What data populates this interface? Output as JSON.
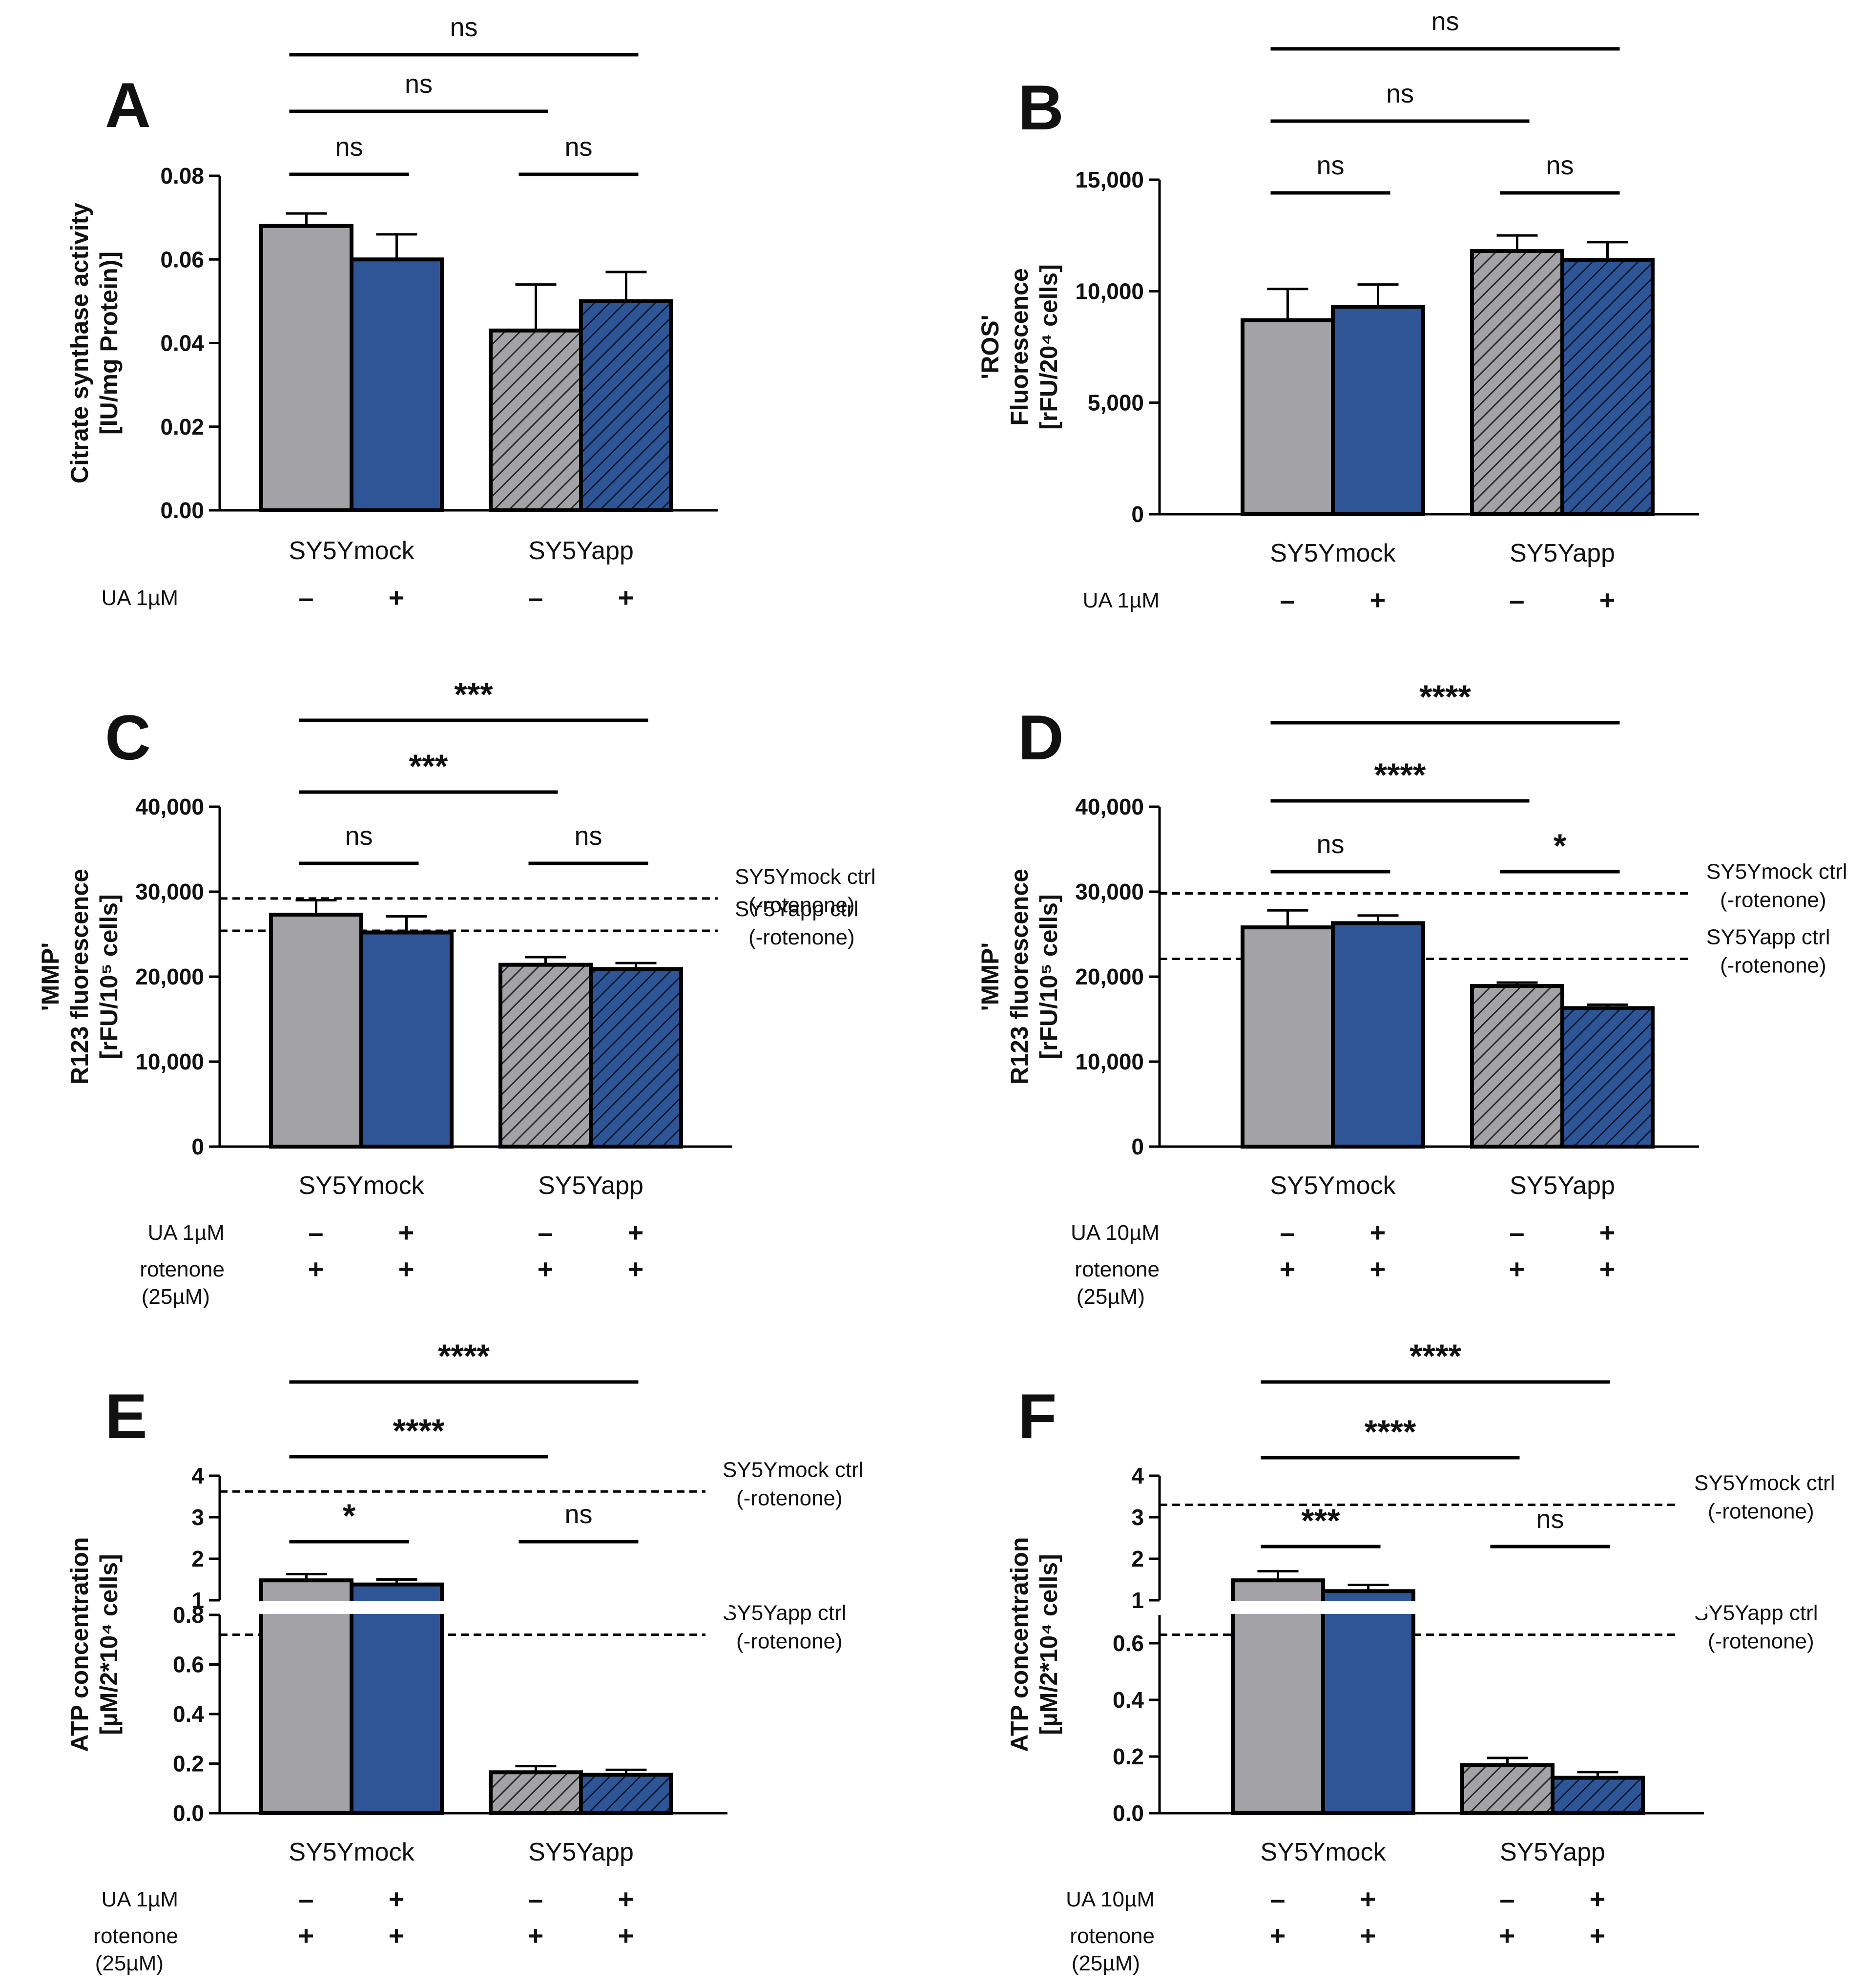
{
  "colors": {
    "mock_fill": "#a3a3a7",
    "ua_fill": "#2e5696",
    "line": "#000000"
  },
  "chart_data": [
    {
      "id": "A",
      "type": "bar",
      "panel": "A",
      "ylabel_lines": [
        "Citrate synthase activity",
        "[IU/mg Protein)]"
      ],
      "yticks": [
        "0.00",
        "0.02",
        "0.04",
        "0.06",
        "0.08"
      ],
      "ylim": [
        0,
        0.08
      ],
      "categories": [
        "SY5Ymock",
        "SY5Yapp"
      ],
      "bars": [
        {
          "group": "SY5Ymock",
          "ua": false,
          "value": 0.068,
          "error": 0.003
        },
        {
          "group": "SY5Ymock",
          "ua": true,
          "value": 0.06,
          "error": 0.006
        },
        {
          "group": "SY5Yapp",
          "ua": false,
          "value": 0.043,
          "error": 0.011
        },
        {
          "group": "SY5Yapp",
          "ua": true,
          "value": 0.05,
          "error": 0.007
        }
      ],
      "rows": [
        {
          "label": "UA 1µM",
          "symbols": [
            "–",
            "+",
            "–",
            "+"
          ]
        }
      ],
      "significance": [
        {
          "from": 0,
          "to": 1,
          "label": "ns"
        },
        {
          "from": 2,
          "to": 3,
          "label": "ns"
        },
        {
          "from": 0,
          "to": 2,
          "label": "ns"
        },
        {
          "from": 0,
          "to": 3,
          "label": "ns"
        }
      ],
      "references": []
    },
    {
      "id": "B",
      "type": "bar",
      "panel": "B",
      "ylabel_lines": [
        "'ROS'",
        "Fluorescence",
        "[rFU/20⁴ cells]"
      ],
      "yticks": [
        "0",
        "5,000",
        "10,000",
        "15,000"
      ],
      "ylim": [
        0,
        15000
      ],
      "categories": [
        "SY5Ymock",
        "SY5Yapp"
      ],
      "bars": [
        {
          "group": "SY5Ymock",
          "ua": false,
          "value": 8700,
          "error": 1400
        },
        {
          "group": "SY5Ymock",
          "ua": true,
          "value": 9300,
          "error": 1000
        },
        {
          "group": "SY5Yapp",
          "ua": false,
          "value": 11800,
          "error": 700
        },
        {
          "group": "SY5Yapp",
          "ua": true,
          "value": 11400,
          "error": 800
        }
      ],
      "rows": [
        {
          "label": "UA 1µM",
          "symbols": [
            "–",
            "+",
            "–",
            "+"
          ]
        }
      ],
      "significance": [
        {
          "from": 0,
          "to": 1,
          "label": "ns"
        },
        {
          "from": 2,
          "to": 3,
          "label": "ns"
        },
        {
          "from": 0,
          "to": 2,
          "label": "ns"
        },
        {
          "from": 0,
          "to": 3,
          "label": "ns"
        }
      ],
      "references": []
    },
    {
      "id": "C",
      "type": "bar",
      "panel": "C",
      "ylabel_lines": [
        "'MMP'",
        "R123 fluorescence",
        "[rFU/10⁵ cells]"
      ],
      "yticks": [
        "0",
        "10,000",
        "20,000",
        "30,000",
        "40,000"
      ],
      "ylim": [
        0,
        40000
      ],
      "categories": [
        "SY5Ymock",
        "SY5Yapp"
      ],
      "bars": [
        {
          "group": "SY5Ymock",
          "ua": false,
          "value": 27300,
          "error": 1700
        },
        {
          "group": "SY5Ymock",
          "ua": true,
          "value": 25200,
          "error": 1900
        },
        {
          "group": "SY5Yapp",
          "ua": false,
          "value": 21400,
          "error": 900
        },
        {
          "group": "SY5Yapp",
          "ua": true,
          "value": 20900,
          "error": 700
        }
      ],
      "rows": [
        {
          "label": "UA 1µM",
          "symbols": [
            "–",
            "+",
            "–",
            "+"
          ]
        },
        {
          "label": "rotenone",
          "sublabel": "(25µM)",
          "symbols": [
            "+",
            "+",
            "+",
            "+"
          ]
        }
      ],
      "significance": [
        {
          "from": 0,
          "to": 1,
          "label": "ns"
        },
        {
          "from": 2,
          "to": 3,
          "label": "ns"
        },
        {
          "from": 0,
          "to": 2,
          "label": "***"
        },
        {
          "from": 0,
          "to": 3,
          "label": "***"
        }
      ],
      "references": [
        {
          "value": 29200,
          "line1": "SY5Ymock ctrl",
          "line2": "(-rotenone)"
        },
        {
          "value": 25400,
          "line1": "SY5Yapp ctrl",
          "line2": "(-rotenone)"
        }
      ]
    },
    {
      "id": "D",
      "type": "bar",
      "panel": "D",
      "ylabel_lines": [
        "'MMP'",
        "R123 fluorescence",
        "[rFU/10⁵ cells]"
      ],
      "yticks": [
        "0",
        "10,000",
        "20,000",
        "30,000",
        "40,000"
      ],
      "ylim": [
        0,
        40000
      ],
      "categories": [
        "SY5Ymock",
        "SY5Yapp"
      ],
      "bars": [
        {
          "group": "SY5Ymock",
          "ua": false,
          "value": 25800,
          "error": 2000
        },
        {
          "group": "SY5Ymock",
          "ua": true,
          "value": 26300,
          "error": 900
        },
        {
          "group": "SY5Yapp",
          "ua": false,
          "value": 18900,
          "error": 400
        },
        {
          "group": "SY5Yapp",
          "ua": true,
          "value": 16300,
          "error": 400
        }
      ],
      "rows": [
        {
          "label": "UA 10µM",
          "symbols": [
            "–",
            "+",
            "–",
            "+"
          ]
        },
        {
          "label": "rotenone",
          "sublabel": "(25µM)",
          "symbols": [
            "+",
            "+",
            "+",
            "+"
          ]
        }
      ],
      "significance": [
        {
          "from": 0,
          "to": 1,
          "label": "ns"
        },
        {
          "from": 2,
          "to": 3,
          "label": "*"
        },
        {
          "from": 0,
          "to": 2,
          "label": "****"
        },
        {
          "from": 0,
          "to": 3,
          "label": "****"
        }
      ],
      "references": [
        {
          "value": 29800,
          "line1": "SY5Ymock ctrl",
          "line2": "(-rotenone)"
        },
        {
          "value": 22100,
          "line1": "SY5Yapp ctrl",
          "line2": "(-rotenone)"
        }
      ]
    },
    {
      "id": "E",
      "type": "bar",
      "panel": "E",
      "broken_axis": true,
      "ylabel_lines": [
        "ATP concentration",
        "[µM/2*10⁴ cells]"
      ],
      "lower_yticks": [
        "0.0",
        "0.2",
        "0.4",
        "0.6",
        "0.8"
      ],
      "lower_ylim": [
        0,
        0.8
      ],
      "upper_yticks": [
        "1",
        "2",
        "3",
        "4"
      ],
      "upper_ylim": [
        1,
        4
      ],
      "categories": [
        "SY5Ymock",
        "SY5Yapp"
      ],
      "bars": [
        {
          "group": "SY5Ymock",
          "ua": false,
          "value": 1.48,
          "error": 0.15
        },
        {
          "group": "SY5Ymock",
          "ua": true,
          "value": 1.38,
          "error": 0.12
        },
        {
          "group": "SY5Yapp",
          "ua": false,
          "value": 0.165,
          "error": 0.025
        },
        {
          "group": "SY5Yapp",
          "ua": true,
          "value": 0.155,
          "error": 0.02
        }
      ],
      "rows": [
        {
          "label": "UA 1µM",
          "symbols": [
            "–",
            "+",
            "–",
            "+"
          ]
        },
        {
          "label": "rotenone",
          "sublabel": "(25µM)",
          "symbols": [
            "+",
            "+",
            "+",
            "+"
          ]
        }
      ],
      "significance": [
        {
          "from": 0,
          "to": 1,
          "label": "*"
        },
        {
          "from": 2,
          "to": 3,
          "label": "ns"
        },
        {
          "from": 0,
          "to": 2,
          "label": "****"
        },
        {
          "from": 0,
          "to": 3,
          "label": "****"
        }
      ],
      "references": [
        {
          "value": 3.62,
          "axis": "upper",
          "line1": "SY5Ymock ctrl",
          "line2": "(-rotenone)"
        },
        {
          "value": 0.72,
          "axis": "lower",
          "line1": "SY5Yapp ctrl",
          "line2": "(-rotenone)"
        }
      ]
    },
    {
      "id": "F",
      "type": "bar",
      "panel": "F",
      "broken_axis": true,
      "ylabel_lines": [
        "ATP concentration",
        "[µM/2*10⁴ cells]"
      ],
      "lower_yticks": [
        "0.0",
        "0.2",
        "0.4",
        "0.6"
      ],
      "lower_ylim": [
        0,
        0.7
      ],
      "upper_yticks": [
        "1",
        "2",
        "3",
        "4"
      ],
      "upper_ylim": [
        1,
        4
      ],
      "categories": [
        "SY5Ymock",
        "SY5Yapp"
      ],
      "bars": [
        {
          "group": "SY5Ymock",
          "ua": false,
          "value": 1.48,
          "error": 0.22
        },
        {
          "group": "SY5Ymock",
          "ua": true,
          "value": 1.22,
          "error": 0.15
        },
        {
          "group": "SY5Yapp",
          "ua": false,
          "value": 0.17,
          "error": 0.025
        },
        {
          "group": "SY5Yapp",
          "ua": true,
          "value": 0.125,
          "error": 0.02
        }
      ],
      "rows": [
        {
          "label": "UA 10µM",
          "symbols": [
            "–",
            "+",
            "–",
            "+"
          ]
        },
        {
          "label": "rotenone",
          "sublabel": "(25µM)",
          "symbols": [
            "+",
            "+",
            "+",
            "+"
          ]
        }
      ],
      "significance": [
        {
          "from": 0,
          "to": 1,
          "label": "***"
        },
        {
          "from": 2,
          "to": 3,
          "label": "ns"
        },
        {
          "from": 0,
          "to": 2,
          "label": "****"
        },
        {
          "from": 0,
          "to": 3,
          "label": "****"
        }
      ],
      "references": [
        {
          "value": 3.3,
          "axis": "upper",
          "line1": "SY5Ymock ctrl",
          "line2": "(-rotenone)"
        },
        {
          "value": 0.63,
          "axis": "lower",
          "line1": "SY5Yapp ctrl",
          "line2": "(-rotenone)"
        }
      ]
    }
  ]
}
